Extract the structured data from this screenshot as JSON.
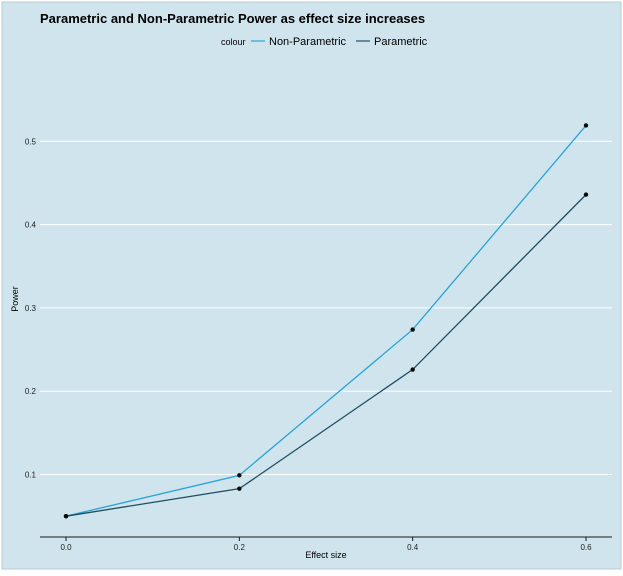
{
  "chart_data": {
    "type": "line",
    "title": "Parametric and Non-Parametric Power as effect size increases",
    "xlabel": "Effect size",
    "ylabel": "Power",
    "legend_title": "colour",
    "legend_position": "top",
    "grid": true,
    "x": [
      0.0,
      0.2,
      0.4,
      0.6
    ],
    "x_ticks": [
      "0.0",
      "0.2",
      "0.4",
      "0.6"
    ],
    "y_ticks": [
      "0.1",
      "0.2",
      "0.3",
      "0.4",
      "0.5"
    ],
    "y_tick_values": [
      0.1,
      0.2,
      0.3,
      0.4,
      0.5
    ],
    "xlim": [
      -0.03,
      0.63
    ],
    "ylim": [
      0.025,
      0.6
    ],
    "series": [
      {
        "name": "Non-Parametric",
        "color": "#29a3d6",
        "values": [
          0.05,
          0.099,
          0.274,
          0.519
        ]
      },
      {
        "name": "Parametric",
        "color": "#1f4e61",
        "values": [
          0.05,
          0.083,
          0.226,
          0.436
        ]
      }
    ],
    "colors": {
      "panel": "#cfe4ec",
      "grid": "#ffffff",
      "point": "#0a0a0a",
      "text": "#000000"
    }
  }
}
